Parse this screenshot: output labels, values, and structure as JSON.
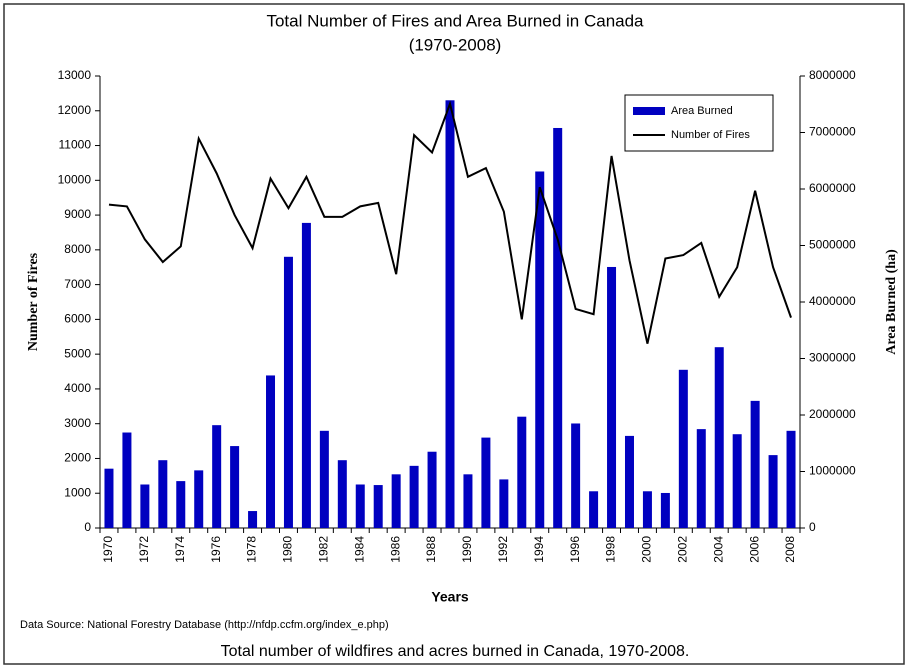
{
  "chart_data": {
    "type": "bar-line",
    "title": "Total Number of Fires and Area Burned in Canada",
    "subtitle": "(1970-2008)",
    "x_label": "Years",
    "y_label": "Number of Fires",
    "y2_label": "Area Burned (ha)",
    "categories": [
      "1970",
      null,
      "1972",
      null,
      "1974",
      null,
      "1976",
      null,
      "1978",
      null,
      "1980",
      null,
      "1982",
      null,
      "1984",
      null,
      "1986",
      null,
      "1988",
      null,
      "1990",
      null,
      "1992",
      null,
      "1994",
      null,
      "1996",
      null,
      "1998",
      null,
      "2000",
      null,
      "2002",
      null,
      "2004",
      null,
      "2006",
      null,
      "2008"
    ],
    "series": [
      {
        "name": "Area Burned",
        "type": "bar",
        "axis": "y2",
        "color": "#0000c0",
        "values": [
          1050000,
          1690000,
          770000,
          1200000,
          830000,
          1020000,
          1820000,
          1450000,
          300000,
          2700000,
          4800000,
          5400000,
          1720000,
          1200000,
          770000,
          760000,
          950000,
          1100000,
          1350000,
          7570000,
          950000,
          1600000,
          860000,
          1970000,
          6310000,
          7080000,
          1850000,
          650000,
          4620000,
          1630000,
          650000,
          620000,
          2800000,
          1750000,
          3200000,
          1660000,
          2250000,
          1290000,
          1720000
        ]
      },
      {
        "name": "Number of Fires",
        "type": "line",
        "axis": "y",
        "color": "#000000",
        "values": [
          9300,
          9250,
          8300,
          7650,
          8100,
          11200,
          10200,
          9000,
          8050,
          10050,
          9200,
          10100,
          8950,
          8950,
          9250,
          9350,
          7300,
          11300,
          10800,
          12200,
          10100,
          10350,
          9100,
          6000,
          9800,
          8300,
          6300,
          6150,
          10700,
          7700,
          5300,
          7750,
          7850,
          8200,
          6650,
          7500,
          9700,
          7500,
          6050
        ]
      }
    ],
    "ylim": [
      0,
      13000
    ],
    "yticks": [
      0,
      1000,
      2000,
      3000,
      4000,
      5000,
      6000,
      7000,
      8000,
      9000,
      10000,
      11000,
      12000,
      13000
    ],
    "y2lim": [
      0,
      8000000
    ],
    "y2ticks": [
      0,
      1000000,
      2000000,
      3000000,
      4000000,
      5000000,
      6000000,
      7000000,
      8000000
    ],
    "legend": "top-right",
    "source": "Data Source: National Forestry Database (http://nfdp.ccfm.org/index_e.php)",
    "caption": "Total number of wildfires and acres burned in Canada, 1970-2008."
  }
}
